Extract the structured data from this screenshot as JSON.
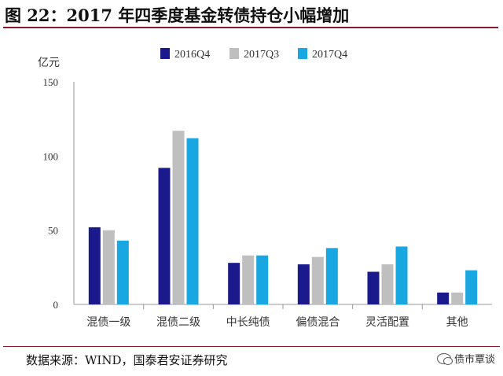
{
  "header": {
    "title": "图 22：2017 年四季度基金转债持仓小幅增加"
  },
  "footer": {
    "source": "数据来源：WIND，国泰君安证券研究",
    "watermark": "债市覃谈",
    "watermark_icon": "wechat-icon"
  },
  "chart_data": {
    "type": "bar",
    "title": "",
    "xlabel": "",
    "ylabel": "亿元",
    "ylim": [
      0,
      150
    ],
    "yticks": [
      0,
      50,
      100,
      150
    ],
    "grid": false,
    "legend_position": "top",
    "categories": [
      "混债一级",
      "混债二级",
      "中长纯债",
      "偏债混合",
      "灵活配置",
      "其他"
    ],
    "series": [
      {
        "name": "2016Q4",
        "color": "#1a1a8c",
        "values": [
          52,
          92,
          28,
          27,
          22,
          8
        ]
      },
      {
        "name": "2017Q3",
        "color": "#bfbfbf",
        "values": [
          50,
          117,
          33,
          32,
          27,
          8
        ]
      },
      {
        "name": "2017Q4",
        "color": "#18a7e0",
        "values": [
          43,
          112,
          33,
          38,
          39,
          23
        ]
      }
    ]
  }
}
